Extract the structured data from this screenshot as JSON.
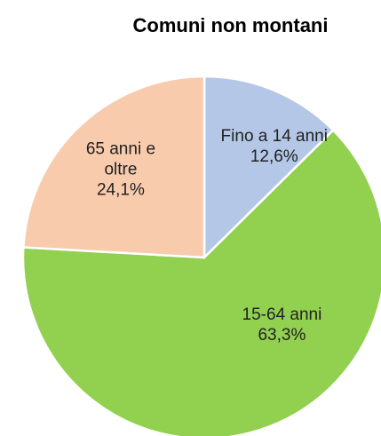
{
  "chart_data": {
    "type": "pie",
    "title": "Comuni non montani",
    "categories": [
      "Fino a 14 anni",
      "15-64 anni",
      "65 anni e oltre"
    ],
    "values": [
      12.6,
      63.3,
      24.1
    ],
    "value_labels": [
      "12,6%",
      "63,3%",
      "24,1%"
    ],
    "colors": [
      "#b4c7e7",
      "#92d050",
      "#f8cbad"
    ]
  }
}
